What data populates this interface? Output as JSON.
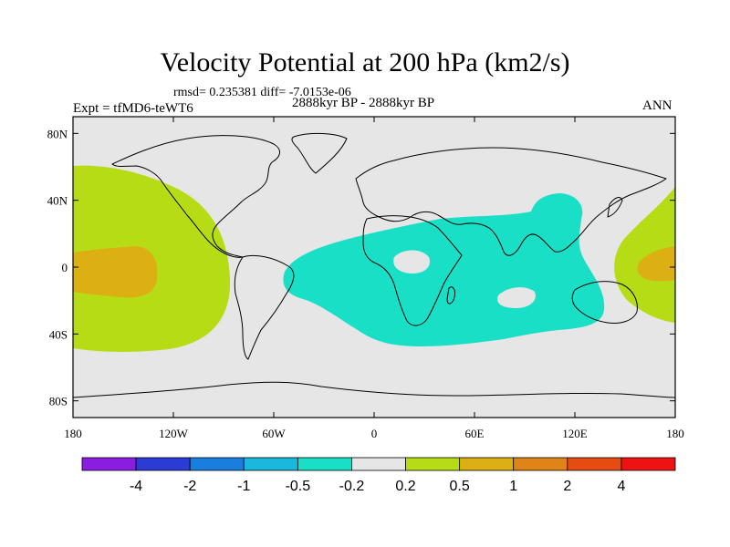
{
  "figure": {
    "title": "Velocity Potential at 200 hPa (km2/s)",
    "stats_line": "rmsd= 0.235381 diff= -7.0153e-06",
    "experiment": "Expt = tfMD6-teWT6",
    "period": "2888kyr BP - 2888kyr BP",
    "season": "ANN"
  },
  "chart_data": {
    "type": "heatmap",
    "projection": "cylindrical-equidistant",
    "title": "Velocity Potential at 200 hPa (km2/s)",
    "units": "km2/s",
    "lon_range": [
      -180,
      180
    ],
    "lat_range": [
      -90,
      90
    ],
    "x_ticks": [
      {
        "value": -180,
        "label": "180"
      },
      {
        "value": -120,
        "label": "120W"
      },
      {
        "value": -60,
        "label": "60W"
      },
      {
        "value": 0,
        "label": "0"
      },
      {
        "value": 60,
        "label": "60E"
      },
      {
        "value": 120,
        "label": "120E"
      },
      {
        "value": 180,
        "label": "180"
      }
    ],
    "y_ticks": [
      {
        "value": 80,
        "label": "80N"
      },
      {
        "value": 40,
        "label": "40N"
      },
      {
        "value": 0,
        "label": "0"
      },
      {
        "value": -40,
        "label": "40S"
      },
      {
        "value": -80,
        "label": "80S"
      }
    ],
    "levels": [
      "-4",
      "-2",
      "-1",
      "-0.5",
      "-0.2",
      "0.2",
      "0.5",
      "1",
      "2",
      "4"
    ],
    "bin_colors": [
      "#8a1de0",
      "#2c3ad6",
      "#1a7ede",
      "#19b8dc",
      "#1adfc7",
      "#e6e6e6",
      "#b6dc16",
      "#dcb012",
      "#e08418",
      "#e64b12",
      "#ee1212"
    ],
    "background_color": "#e6e6e6",
    "regions": [
      {
        "name": "central-pacific-positive",
        "bin": 6,
        "lon": -155,
        "lat": 5
      },
      {
        "name": "central-pacific-core",
        "bin": 7,
        "lon": -155,
        "lat": 0
      },
      {
        "name": "west-pacific-positive",
        "bin": 6,
        "lon": 170,
        "lat": 0
      },
      {
        "name": "west-pacific-core",
        "bin": 7,
        "lon": 165,
        "lat": 0
      },
      {
        "name": "africa-indian-negative",
        "bin": 4,
        "lon": 50,
        "lat": -5
      }
    ]
  }
}
